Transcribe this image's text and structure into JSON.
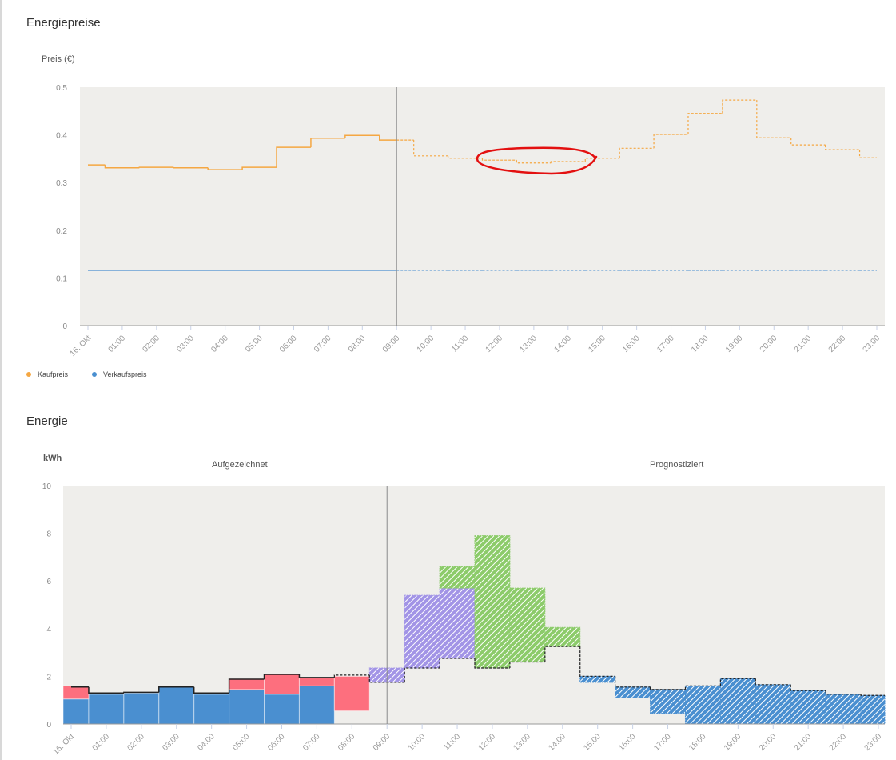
{
  "page": {
    "price_section_title": "Energiepreise",
    "energy_section_title": "Energie"
  },
  "price_chart": {
    "y_axis_title": "Preis (€)",
    "legend": [
      {
        "label": "Kaufpreis",
        "color": "#f5a742"
      },
      {
        "label": "Verkaufspreis",
        "color": "#4a8fd0"
      }
    ]
  },
  "energy_chart": {
    "y_axis_title": "kWh",
    "region_recorded": "Aufgezeichnet",
    "region_forecast": "Prognostiziert"
  },
  "colors": {
    "plot_bg": "#efeeeb",
    "buy": "#f5a742",
    "sell": "#4a8fd0",
    "consumption_blue": "#4a8fd0",
    "grid_pink": "#fd6f7e",
    "battery_purple": "#a294e6",
    "pv_green": "#8ccb6a",
    "annotation_red": "#e31010",
    "now_line": "#8a8a8a"
  },
  "chart_data": [
    {
      "type": "line",
      "title": "Energiepreise",
      "ylabel": "Preis (€)",
      "xlabel": "",
      "ylim": [
        0,
        0.5
      ],
      "yticks": [
        0,
        0.1,
        0.2,
        0.3,
        0.4,
        0.5
      ],
      "x": [
        "16. Okt",
        "01:00",
        "02:00",
        "03:00",
        "04:00",
        "05:00",
        "06:00",
        "07:00",
        "08:00",
        "09:00",
        "10:00",
        "11:00",
        "12:00",
        "13:00",
        "14:00",
        "15:00",
        "16:00",
        "17:00",
        "18:00",
        "19:00",
        "20:00",
        "21:00",
        "22:00",
        "23:00"
      ],
      "step": true,
      "now_marker": "09:00",
      "series": [
        {
          "name": "Kaufpreis",
          "color": "#f5a742",
          "values": [
            0.337,
            0.331,
            0.332,
            0.331,
            0.327,
            0.332,
            0.374,
            0.393,
            0.399,
            0.389,
            0.356,
            0.351,
            0.347,
            0.341,
            0.344,
            0.351,
            0.372,
            0.401,
            0.445,
            0.473,
            0.394,
            0.379,
            0.369,
            0.352
          ],
          "style_after_now": "dashed"
        },
        {
          "name": "Verkaufspreis",
          "color": "#4a8fd0",
          "values": [
            0.116,
            0.116,
            0.116,
            0.116,
            0.116,
            0.116,
            0.116,
            0.116,
            0.116,
            0.116,
            0.116,
            0.116,
            0.116,
            0.116,
            0.116,
            0.116,
            0.116,
            0.116,
            0.116,
            0.116,
            0.116,
            0.116,
            0.116,
            0.116
          ],
          "style_after_now": "dashed"
        }
      ],
      "annotations": [
        {
          "type": "ellipse",
          "color": "#e31010",
          "x_range": [
            "11:30",
            "14:45"
          ],
          "note": "hand-drawn red circle around 12:00–14:00 low price"
        }
      ],
      "legend_position": "bottom-left",
      "grid": false
    },
    {
      "type": "bar",
      "title": "Energie",
      "ylabel": "kWh",
      "xlabel": "",
      "ylim": [
        0,
        10
      ],
      "yticks": [
        0,
        2,
        4,
        6,
        8,
        10
      ],
      "categories": [
        "16. Okt",
        "01:00",
        "02:00",
        "03:00",
        "04:00",
        "05:00",
        "06:00",
        "07:00",
        "08:00",
        "09:00",
        "10:00",
        "11:00",
        "12:00",
        "13:00",
        "14:00",
        "15:00",
        "16:00",
        "17:00",
        "18:00",
        "19:00",
        "20:00",
        "21:00",
        "22:00",
        "23:00"
      ],
      "now_marker": "09:00",
      "region_labels": [
        "Aufgezeichnet",
        "Prognostiziert"
      ],
      "stacked": true,
      "series": [
        {
          "name": "blue (house/consumption)",
          "color": "#4a8fd0",
          "ranges": [
            [
              0,
              1.05
            ],
            [
              0,
              1.25
            ],
            [
              0,
              1.3
            ],
            [
              0,
              1.55
            ],
            [
              0,
              1.25
            ],
            [
              0,
              1.45
            ],
            [
              0,
              1.25
            ],
            [
              0,
              1.6
            ],
            null,
            null,
            null,
            null,
            null,
            null,
            null,
            [
              1.75,
              2.0
            ],
            [
              1.1,
              1.55
            ],
            [
              0.45,
              1.45
            ],
            [
              0,
              1.6
            ],
            [
              0,
              1.9
            ],
            [
              0,
              1.65
            ],
            [
              0,
              1.4
            ],
            [
              0,
              1.25
            ],
            [
              0,
              1.2
            ]
          ]
        },
        {
          "name": "pink (grid)",
          "color": "#fd6f7e",
          "ranges": [
            [
              1.05,
              1.6
            ],
            [
              1.25,
              1.3
            ],
            null,
            null,
            [
              1.25,
              1.3
            ],
            [
              1.45,
              1.9
            ],
            [
              1.25,
              2.1
            ],
            [
              1.6,
              1.95
            ],
            [
              0.55,
              2.0
            ],
            null,
            null,
            null,
            null,
            null,
            null,
            null,
            null,
            null,
            null,
            null,
            null,
            null,
            null,
            null
          ]
        },
        {
          "name": "purple (battery)",
          "color": "#a294e6",
          "ranges": [
            null,
            null,
            null,
            null,
            null,
            null,
            null,
            null,
            null,
            [
              1.75,
              2.35
            ],
            [
              2.35,
              5.4
            ],
            [
              2.75,
              5.7
            ],
            null,
            null,
            null,
            null,
            null,
            null,
            null,
            null,
            null,
            null,
            null,
            null
          ]
        },
        {
          "name": "green (PV)",
          "color": "#8ccb6a",
          "ranges": [
            null,
            null,
            null,
            null,
            null,
            null,
            null,
            null,
            null,
            null,
            null,
            [
              5.7,
              6.6
            ],
            [
              2.35,
              7.9
            ],
            [
              2.6,
              5.7
            ],
            [
              3.25,
              4.05
            ],
            null,
            null,
            null,
            null,
            null,
            null,
            null,
            null,
            null
          ]
        }
      ],
      "consumption_line": [
        1.55,
        1.3,
        1.33,
        1.55,
        1.3,
        1.88,
        2.08,
        1.95,
        2.05,
        1.75,
        2.35,
        2.75,
        2.35,
        2.6,
        3.25,
        2.0,
        1.55,
        1.45,
        1.6,
        1.9,
        1.65,
        1.4,
        1.25,
        1.2
      ],
      "forecast_style": "hatched"
    }
  ]
}
